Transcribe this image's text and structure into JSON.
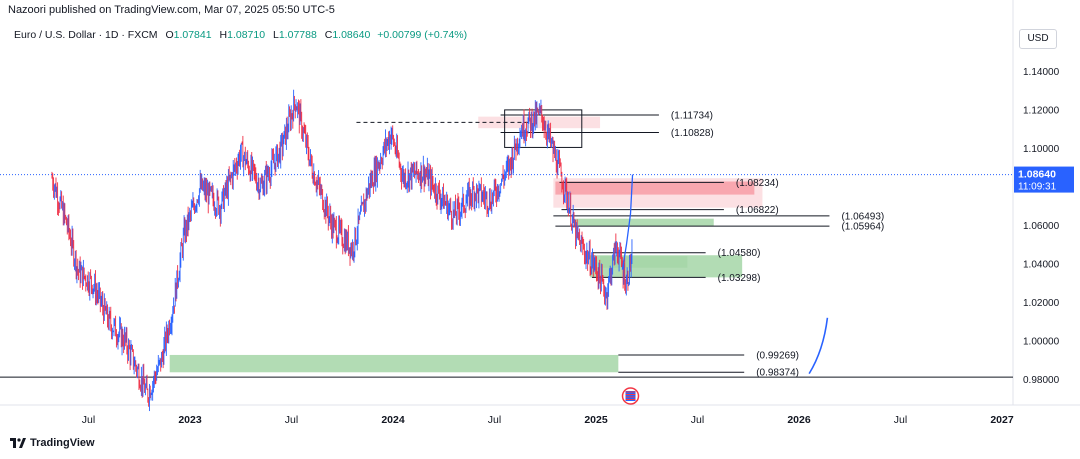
{
  "header": {
    "publisher_line": "Nazoori published on TradingView.com, Mar 07, 2025 05:50 UTC-5",
    "symbol": "Euro / U.S. Dollar · 1D · FXCM",
    "open_label": "O",
    "open": "1.07841",
    "high_label": "H",
    "high": "1.08710",
    "low_label": "L",
    "low": "1.07788",
    "close_label": "C",
    "close": "1.08640",
    "change": "+0.00799 (+0.74%)",
    "currency": "USD"
  },
  "brand": {
    "name": "TradingView",
    "icon": "tradingview-logo-icon"
  },
  "colors": {
    "up": "#089981",
    "down": "#f23645",
    "candle_blue": "#2962ff",
    "candle_red": "#ef2e44",
    "green_zone": "#a5d6a7",
    "red_zone": "#f7a1a8",
    "pink_zone": "#fcdde0",
    "price_badge": "#2962ff"
  },
  "chart_data": {
    "type": "candlestick",
    "symbol": "EURUSD",
    "ylim": [
      0.9667,
      1.148
    ],
    "x_ticks": [
      "Jul",
      "2023",
      "Jul",
      "2024",
      "Jul",
      "2025",
      "Jul",
      "2026",
      "Jul",
      "2027"
    ],
    "y_ticks": [
      "1.14000",
      "1.12000",
      "1.10000",
      "1.08000",
      "1.06000",
      "1.04000",
      "1.02000",
      "1.00000",
      "0.98000"
    ],
    "current_price": "1.08640",
    "countdown": "11:09:31",
    "price_path": [
      [
        2022.32,
        1.085
      ],
      [
        2022.4,
        1.058
      ],
      [
        2022.45,
        1.036
      ],
      [
        2022.52,
        1.03
      ],
      [
        2022.6,
        1.01
      ],
      [
        2022.68,
        1.0
      ],
      [
        2022.74,
        0.985
      ],
      [
        2022.79,
        0.972
      ],
      [
        2022.86,
        0.99
      ],
      [
        2022.92,
        1.02
      ],
      [
        2022.97,
        1.055
      ],
      [
        2023.05,
        1.08
      ],
      [
        2023.15,
        1.07
      ],
      [
        2023.25,
        1.098
      ],
      [
        2023.35,
        1.08
      ],
      [
        2023.45,
        1.1
      ],
      [
        2023.52,
        1.125
      ],
      [
        2023.6,
        1.09
      ],
      [
        2023.7,
        1.06
      ],
      [
        2023.8,
        1.048
      ],
      [
        2023.88,
        1.08
      ],
      [
        2023.99,
        1.108
      ],
      [
        2024.05,
        1.085
      ],
      [
        2024.15,
        1.088
      ],
      [
        2024.3,
        1.065
      ],
      [
        2024.4,
        1.078
      ],
      [
        2024.48,
        1.073
      ],
      [
        2024.57,
        1.09
      ],
      [
        2024.63,
        1.11
      ],
      [
        2024.73,
        1.118
      ],
      [
        2024.8,
        1.095
      ],
      [
        2024.85,
        1.078
      ],
      [
        2024.9,
        1.055
      ],
      [
        2024.95,
        1.045
      ],
      [
        2025.0,
        1.038
      ],
      [
        2025.05,
        1.024
      ],
      [
        2025.1,
        1.05
      ],
      [
        2025.15,
        1.03
      ],
      [
        2025.18,
        1.046
      ],
      [
        2025.18,
        1.0864
      ]
    ],
    "levels": [
      {
        "label": "(1.11734)",
        "value": 1.11734
      },
      {
        "label": "(1.10828)",
        "value": 1.10828
      },
      {
        "label": "(1.08234)",
        "value": 1.08234
      },
      {
        "label": "(1.06822)",
        "value": 1.06822
      },
      {
        "label": "(1.06493)",
        "value": 1.06493
      },
      {
        "label": "(1.05964)",
        "value": 1.05964
      },
      {
        "label": "(1.04580)",
        "value": 1.0458
      },
      {
        "label": "(1.03298)",
        "value": 1.03298
      },
      {
        "label": "(0.99269)",
        "value": 0.99269
      },
      {
        "label": "(0.98374)",
        "value": 0.98374
      }
    ],
    "zones": [
      {
        "color": "pink",
        "x0": 2024.42,
        "x1": 2025.02,
        "y0": 1.1105,
        "y1": 1.1165
      },
      {
        "color": "pink",
        "x0": 2024.79,
        "x1": 2025.82,
        "y0": 1.0692,
        "y1": 1.0845
      },
      {
        "color": "red",
        "x0": 2024.8,
        "x1": 2025.78,
        "y0": 1.076,
        "y1": 1.0828
      },
      {
        "color": "green",
        "x0": 2024.89,
        "x1": 2025.58,
        "y0": 1.0595,
        "y1": 1.0635
      },
      {
        "color": "green",
        "x0": 2024.97,
        "x1": 2025.72,
        "y0": 1.033,
        "y1": 1.0445
      },
      {
        "color": "green",
        "x0": 2025.02,
        "x1": 2025.45,
        "y0": 1.038,
        "y1": 1.044
      },
      {
        "color": "green",
        "x0": 2022.9,
        "x1": 2025.11,
        "y0": 0.9837,
        "y1": 0.9927
      }
    ],
    "rect_outline": {
      "x0": 2024.55,
      "x1": 2024.93,
      "y0": 1.1005,
      "y1": 1.12
    },
    "dashed_level": {
      "value": 1.1135,
      "x0": 2023.82,
      "x1": 2024.68
    },
    "horizontal_line": {
      "value": 0.9812
    }
  }
}
